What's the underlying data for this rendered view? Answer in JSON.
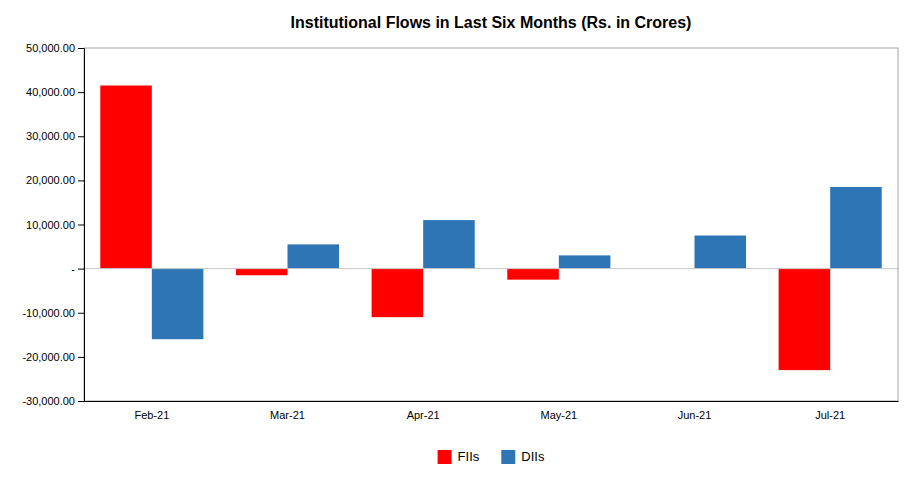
{
  "chart_data": {
    "type": "bar",
    "title": "Institutional Flows in Last Six Months (Rs. in Crores)",
    "categories": [
      "Feb-21",
      "Mar-21",
      "Apr-21",
      "May-21",
      "Jun-21",
      "Jul-21"
    ],
    "series": [
      {
        "name": "FIIs",
        "color": "#FF0000",
        "values": [
          41500,
          -1500,
          -11000,
          -2500,
          0,
          -23000
        ]
      },
      {
        "name": "DIIs",
        "color": "#2E75B6",
        "values": [
          -16000,
          5500,
          11000,
          3000,
          7500,
          18500
        ]
      }
    ],
    "ylim": [
      -30000,
      50000
    ],
    "yticks": [
      {
        "value": -30000,
        "label": "-30,000.00"
      },
      {
        "value": -20000,
        "label": "-20,000.00"
      },
      {
        "value": -10000,
        "label": "-10,000.00"
      },
      {
        "value": 0,
        "label": "-"
      },
      {
        "value": 10000,
        "label": "10,000.00"
      },
      {
        "value": 20000,
        "label": "20,000.00"
      },
      {
        "value": 30000,
        "label": "30,000.00"
      },
      {
        "value": 40000,
        "label": "40,000.00"
      },
      {
        "value": 50000,
        "label": "50,000.00"
      }
    ],
    "grid": false,
    "legend": "bottom"
  }
}
